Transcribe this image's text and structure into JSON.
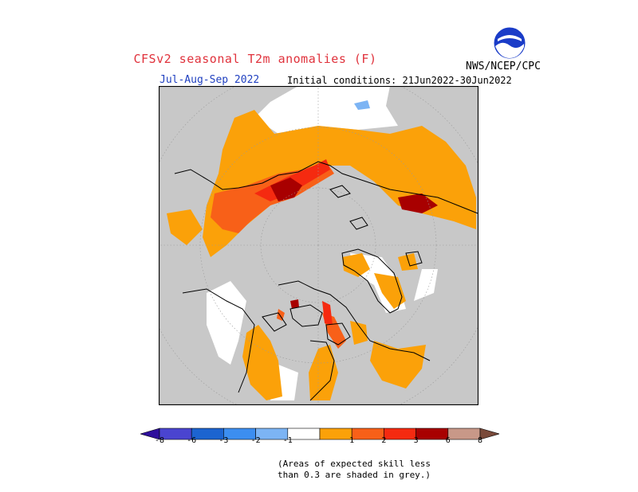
{
  "header": {
    "title": "CFSv2 seasonal T2m anomalies (F)",
    "period": "Jul-Aug-Sep 2022",
    "initial_conditions": "Initial conditions: 21Jun2022-30Jun2022",
    "agency": "NWS/NCEP/CPC",
    "logo_text": "NOAA"
  },
  "colors": {
    "skill_mask_grey": "#c8c8c8",
    "land_outline": "#000000",
    "neutral": "#ffffff"
  },
  "legend": {
    "bins": [
      {
        "color": "#2e0f9c",
        "label": "-8"
      },
      {
        "color": "#4a44d0",
        "label": "-6"
      },
      {
        "color": "#1c64d0",
        "label": "-3"
      },
      {
        "color": "#3c8ef0",
        "label": "-2"
      },
      {
        "color": "#7cb4f4",
        "label": "-1"
      },
      {
        "color": "#ffffff",
        "label": ""
      },
      {
        "color": "#fba109",
        "label": "1"
      },
      {
        "color": "#f86018",
        "label": "2"
      },
      {
        "color": "#f52a10",
        "label": "3"
      },
      {
        "color": "#a80000",
        "label": "6"
      },
      {
        "color": "#c89888",
        "label": "8"
      },
      {
        "color": "#7a4a3a",
        "label": ""
      }
    ]
  },
  "footnote": {
    "line1": "(Areas of expected skill less",
    "line2": "than 0.3 are shaded in grey.)"
  }
}
